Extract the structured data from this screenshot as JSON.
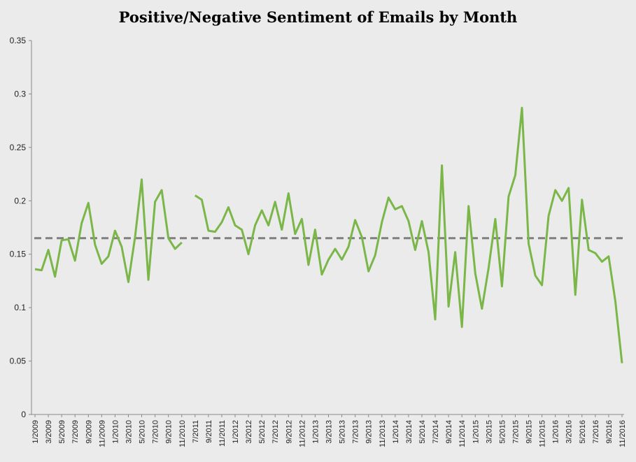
{
  "chart_data": {
    "type": "line",
    "title": "Positive/Negative Sentiment of Emails by Month",
    "xlabel": "",
    "ylabel": "",
    "ylim": [
      0,
      0.35
    ],
    "yticks": [
      "0",
      "0.05",
      "0.1",
      "0.15",
      "0.2",
      "0.25",
      "0.3",
      "0.35"
    ],
    "grid": false,
    "legend": "none",
    "x_tick_labels": [
      "1/2009",
      "3/2009",
      "5/2009",
      "7/2009",
      "9/2009",
      "11/2009",
      "1/2010",
      "3/2010",
      "5/2010",
      "7/2010",
      "9/2010",
      "11/2010",
      "7/2011",
      "9/2011",
      "11/2011",
      "1/2012",
      "3/2012",
      "5/2012",
      "7/2012",
      "9/2012",
      "11/2012",
      "1/2013",
      "3/2013",
      "5/2013",
      "7/2013",
      "9/2013",
      "11/2013",
      "1/2014",
      "3/2014",
      "5/2014",
      "7/2014",
      "9/2014",
      "11/2014",
      "1/2015",
      "3/2015",
      "5/2015",
      "7/2015",
      "9/2015",
      "11/2015",
      "1/2016",
      "3/2016",
      "5/2016",
      "7/2016",
      "9/2016",
      "11/2016"
    ],
    "categories": [
      "1/2009",
      "2/2009",
      "3/2009",
      "4/2009",
      "5/2009",
      "6/2009",
      "7/2009",
      "8/2009",
      "9/2009",
      "10/2009",
      "11/2009",
      "12/2009",
      "1/2010",
      "2/2010",
      "3/2010",
      "4/2010",
      "5/2010",
      "6/2010",
      "7/2010",
      "8/2010",
      "9/2010",
      "10/2010",
      "11/2010",
      "12/2010",
      "7/2011",
      "8/2011",
      "9/2011",
      "10/2011",
      "11/2011",
      "12/2011",
      "1/2012",
      "2/2012",
      "3/2012",
      "4/2012",
      "5/2012",
      "6/2012",
      "7/2012",
      "8/2012",
      "9/2012",
      "10/2012",
      "11/2012",
      "12/2012",
      "1/2013",
      "2/2013",
      "3/2013",
      "4/2013",
      "5/2013",
      "6/2013",
      "7/2013",
      "8/2013",
      "9/2013",
      "10/2013",
      "11/2013",
      "12/2013",
      "1/2014",
      "2/2014",
      "3/2014",
      "4/2014",
      "5/2014",
      "6/2014",
      "7/2014",
      "8/2014",
      "9/2014",
      "10/2014",
      "11/2014",
      "12/2014",
      "1/2015",
      "2/2015",
      "3/2015",
      "4/2015",
      "5/2015",
      "6/2015",
      "7/2015",
      "8/2015",
      "9/2015",
      "10/2015",
      "11/2015",
      "12/2015",
      "1/2016",
      "2/2016",
      "3/2016",
      "4/2016",
      "5/2016",
      "6/2016",
      "7/2016",
      "8/2016",
      "9/2016",
      "10/2016",
      "11/2016"
    ],
    "series": [
      {
        "color": "#7ab648",
        "values": [
          0.136,
          0.135,
          0.154,
          0.129,
          0.163,
          0.164,
          0.144,
          0.179,
          0.198,
          0.159,
          0.141,
          0.148,
          0.172,
          0.157,
          0.124,
          0.166,
          0.22,
          0.126,
          0.199,
          0.21,
          0.165,
          0.155,
          0.161,
          null,
          0.205,
          0.201,
          0.172,
          0.171,
          0.18,
          0.194,
          0.177,
          0.173,
          0.15,
          0.177,
          0.191,
          0.177,
          0.199,
          0.173,
          0.207,
          0.169,
          0.183,
          0.14,
          0.173,
          0.131,
          0.145,
          0.155,
          0.145,
          0.157,
          0.182,
          0.166,
          0.134,
          0.149,
          0.18,
          0.203,
          0.192,
          0.195,
          0.181,
          0.154,
          0.181,
          0.152,
          0.089,
          0.233,
          0.101,
          0.152,
          0.082,
          0.195,
          0.132,
          0.099,
          0.137,
          0.183,
          0.12,
          0.204,
          0.224,
          0.287,
          0.16,
          0.13,
          0.121,
          0.186,
          0.21,
          0.2,
          0.212,
          0.112,
          0.201,
          0.154,
          0.151,
          0.143,
          0.148,
          0.106,
          0.048
        ]
      }
    ],
    "reference_line": {
      "value": 0.165,
      "style": "dashed",
      "color": "#7f7f7f"
    }
  }
}
